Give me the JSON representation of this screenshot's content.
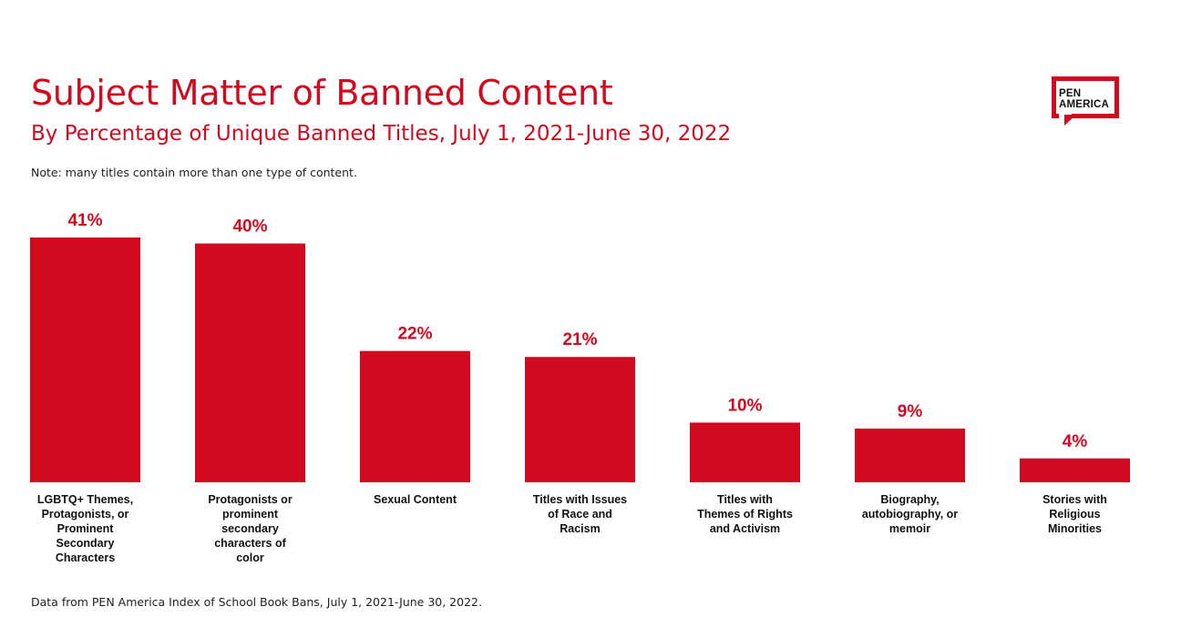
{
  "title": "Subject Matter of Banned Content",
  "subtitle": "By Percentage of Unique Banned Titles, July 1, 2021-June 30, 2022",
  "note": "Note: many titles contain more than one type of content.",
  "source": "Data from PEN America Index of School Book Bans, July 1, 2021-June 30, 2022.",
  "logo": {
    "line1": "PEN",
    "line2": "AMERICA"
  },
  "colors": {
    "accent": "#d20a20",
    "text": "#222222"
  },
  "chart_data": {
    "type": "bar",
    "title": "Subject Matter of Banned Content",
    "subtitle": "By Percentage of Unique Banned Titles, July 1, 2021-June 30, 2022",
    "categories": [
      [
        "LGBTQ+ Themes,",
        "Protagonists, or",
        "Prominent",
        "Secondary",
        "Characters"
      ],
      [
        "Protagonists or",
        "prominent",
        "secondary",
        "characters of",
        "color"
      ],
      [
        "Sexual Content"
      ],
      [
        "Titles with Issues",
        "of Race and",
        "Racism"
      ],
      [
        "Titles with",
        "Themes of Rights",
        "and Activism"
      ],
      [
        "Biography,",
        "autobiography, or",
        "memoir"
      ],
      [
        "Stories with",
        "Religious",
        "Minorities"
      ]
    ],
    "values": [
      41,
      40,
      22,
      21,
      10,
      9,
      4
    ],
    "value_labels": [
      "41%",
      "40%",
      "22%",
      "21%",
      "10%",
      "9%",
      "4%"
    ],
    "unit": "%",
    "ylim": [
      0,
      41
    ],
    "grid": false,
    "legend": "none",
    "bar_color": "#d20a20"
  }
}
